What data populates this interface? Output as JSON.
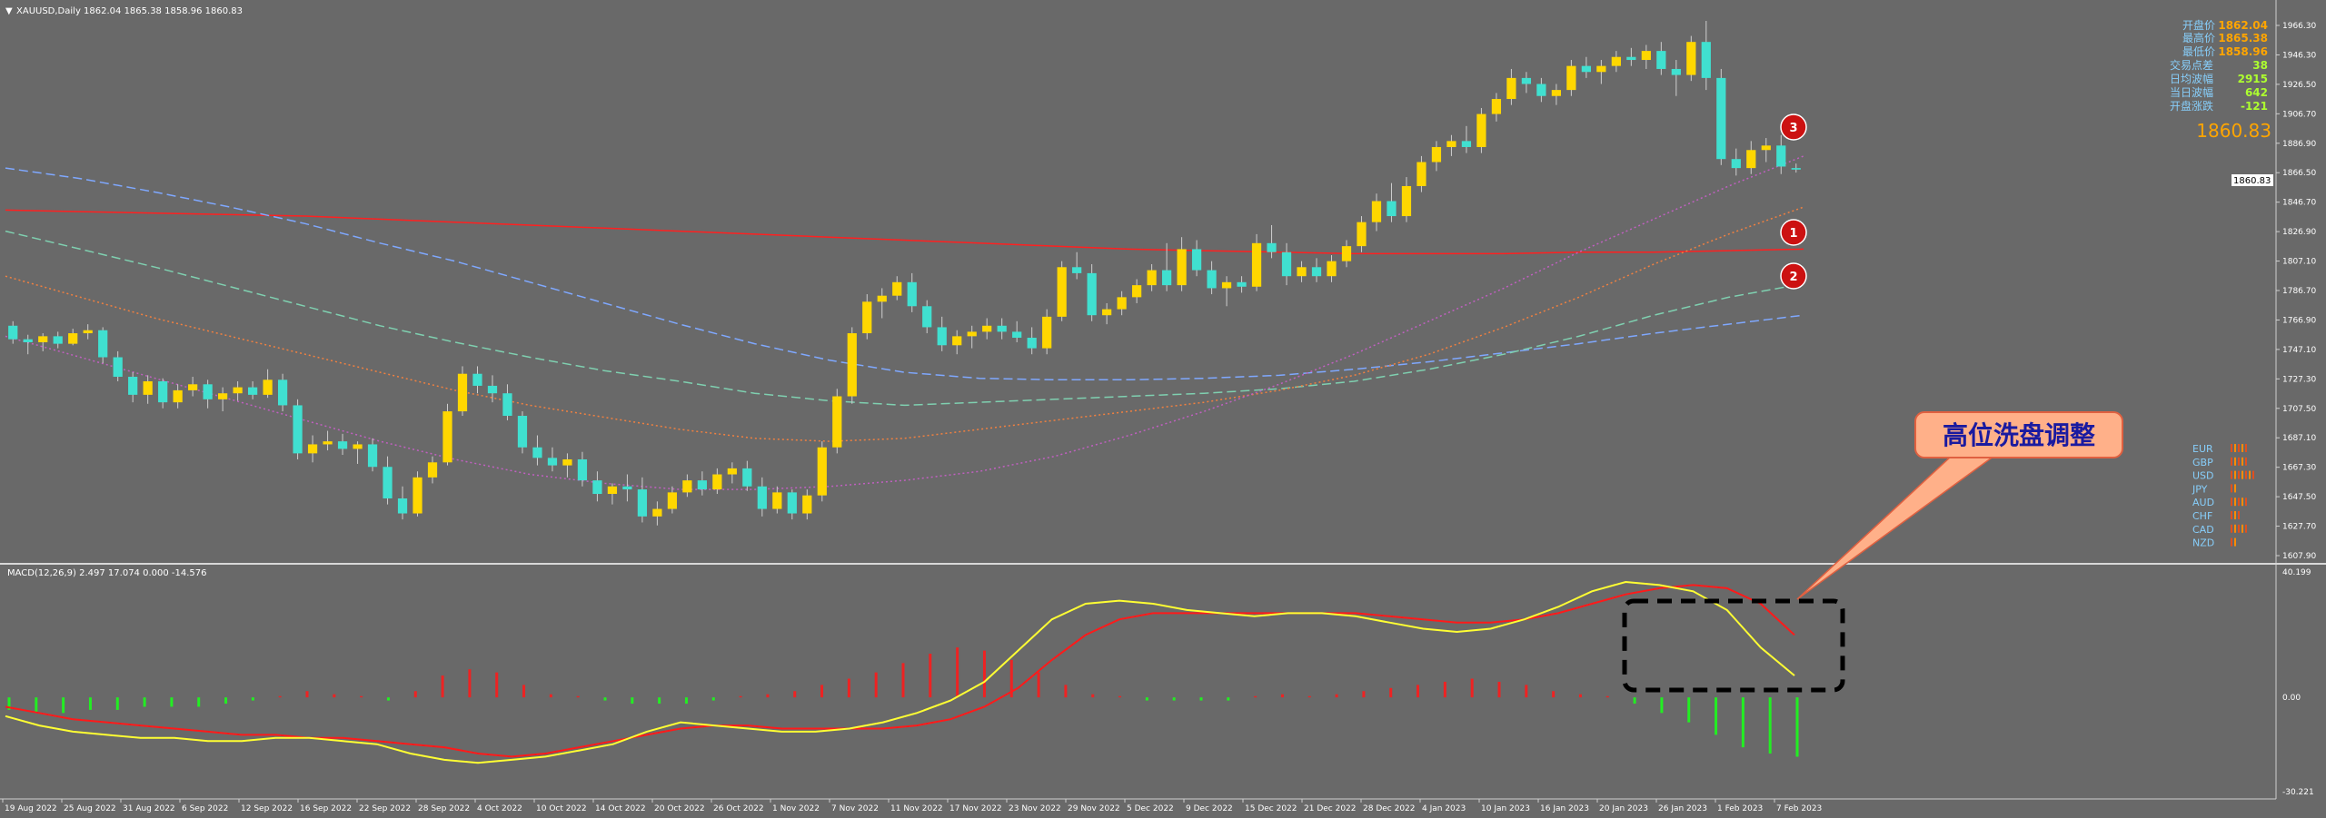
{
  "header": {
    "symbol_line": "XAUUSD,Daily  1862.04 1865.38 1858.96 1860.83",
    "macd_line": "MACD(12,26,9) 2.497 17.074 0.000 -14.576"
  },
  "info_panel": {
    "rows": [
      {
        "label": "开盘价",
        "value": "1862.04"
      },
      {
        "label": "最高价",
        "value": "1865.38"
      },
      {
        "label": "最低价",
        "value": "1858.96"
      },
      {
        "label": "交易点差",
        "value": "38"
      },
      {
        "label": "日均波幅",
        "value": "2915"
      },
      {
        "label": "当日波幅",
        "value": "642"
      },
      {
        "label": "开盘涨跌",
        "value": "-121"
      }
    ],
    "last_price": "1860.83",
    "price_tag": "1860.83"
  },
  "currency_strength": {
    "rows": [
      {
        "label": "EUR",
        "bars": 5
      },
      {
        "label": "GBP",
        "bars": 5
      },
      {
        "label": "USD",
        "bars": 7
      },
      {
        "label": "JPY",
        "bars": 2
      },
      {
        "label": "AUD",
        "bars": 5
      },
      {
        "label": "CHF",
        "bars": 3
      },
      {
        "label": "CAD",
        "bars": 5
      },
      {
        "label": "NZD",
        "bars": 2
      }
    ]
  },
  "annotation": {
    "callout_text": "高位洗盘调整",
    "markers": [
      "3",
      "1",
      "2"
    ]
  },
  "colors": {
    "background": "#696969",
    "bull_candle": "#FFD700",
    "bear_candle": "#40E0D0",
    "macd_signal_red": "#FF1A1A",
    "macd_line_yellow": "#FFFF33",
    "hist_green": "#22EE22",
    "hist_red": "#EE2222",
    "label_orange": "#FFA500",
    "label_green": "#ADFF2F",
    "label_blue": "#87CEFA"
  },
  "chart_data": [
    {
      "type": "candlestick",
      "title": "XAUUSD,Daily",
      "x_tick_labels": [
        "19 Aug 2022",
        "25 Aug 2022",
        "31 Aug 2022",
        "6 Sep 2022",
        "12 Sep 2022",
        "16 Sep 2022",
        "22 Sep 2022",
        "28 Sep 2022",
        "4 Oct 2022",
        "10 Oct 2022",
        "14 Oct 2022",
        "20 Oct 2022",
        "26 Oct 2022",
        "1 Nov 2022",
        "7 Nov 2022",
        "11 Nov 2022",
        "17 Nov 2022",
        "23 Nov 2022",
        "29 Nov 2022",
        "5 Dec 2022",
        "9 Dec 2022",
        "15 Dec 2022",
        "21 Dec 2022",
        "28 Dec 2022",
        "4 Jan 2023",
        "10 Jan 2023",
        "16 Jan 2023",
        "20 Jan 2023",
        "26 Jan 2023",
        "1 Feb 2023",
        "7 Feb 2023"
      ],
      "y_tick_labels": [
        "1966.30",
        "1946.30",
        "1926.50",
        "1906.70",
        "1886.90",
        "1866.50",
        "1846.70",
        "1826.90",
        "1807.10",
        "1786.70",
        "1766.90",
        "1747.10",
        "1727.30",
        "1707.50",
        "1687.10",
        "1667.30",
        "1647.50",
        "1627.70",
        "1607.90"
      ],
      "ylim": [
        1607.9,
        1966.3
      ],
      "last_price": 1860.83,
      "ohlc": [
        [
          1757,
          1760,
          1745,
          1748
        ],
        [
          1748,
          1751,
          1738,
          1746
        ],
        [
          1746,
          1752,
          1740,
          1750
        ],
        [
          1750,
          1753,
          1742,
          1745
        ],
        [
          1745,
          1755,
          1744,
          1752
        ],
        [
          1752,
          1758,
          1748,
          1754
        ],
        [
          1754,
          1756,
          1732,
          1736
        ],
        [
          1736,
          1740,
          1720,
          1723
        ],
        [
          1723,
          1726,
          1706,
          1711
        ],
        [
          1711,
          1724,
          1705,
          1720
        ],
        [
          1720,
          1722,
          1702,
          1706
        ],
        [
          1706,
          1718,
          1702,
          1714
        ],
        [
          1714,
          1723,
          1710,
          1718
        ],
        [
          1718,
          1721,
          1702,
          1708
        ],
        [
          1708,
          1716,
          1700,
          1712
        ],
        [
          1712,
          1720,
          1707,
          1716
        ],
        [
          1716,
          1720,
          1708,
          1711
        ],
        [
          1711,
          1728,
          1709,
          1721
        ],
        [
          1721,
          1725,
          1700,
          1704
        ],
        [
          1704,
          1708,
          1668,
          1672
        ],
        [
          1672,
          1684,
          1666,
          1678
        ],
        [
          1678,
          1687,
          1674,
          1680
        ],
        [
          1680,
          1685,
          1671,
          1675
        ],
        [
          1675,
          1680,
          1665,
          1678
        ],
        [
          1678,
          1682,
          1660,
          1663
        ],
        [
          1663,
          1670,
          1638,
          1642
        ],
        [
          1642,
          1650,
          1628,
          1632
        ],
        [
          1632,
          1660,
          1630,
          1656
        ],
        [
          1656,
          1670,
          1652,
          1666
        ],
        [
          1666,
          1705,
          1664,
          1700
        ],
        [
          1700,
          1730,
          1697,
          1725
        ],
        [
          1725,
          1730,
          1712,
          1717
        ],
        [
          1717,
          1724,
          1706,
          1712
        ],
        [
          1712,
          1718,
          1694,
          1697
        ],
        [
          1697,
          1700,
          1672,
          1676
        ],
        [
          1676,
          1684,
          1664,
          1669
        ],
        [
          1669,
          1676,
          1660,
          1664
        ],
        [
          1664,
          1672,
          1656,
          1668
        ],
        [
          1668,
          1673,
          1650,
          1654
        ],
        [
          1654,
          1660,
          1640,
          1645
        ],
        [
          1645,
          1652,
          1638,
          1650
        ],
        [
          1650,
          1658,
          1640,
          1648
        ],
        [
          1648,
          1656,
          1626,
          1630
        ],
        [
          1630,
          1640,
          1624,
          1635
        ],
        [
          1635,
          1650,
          1632,
          1646
        ],
        [
          1646,
          1658,
          1643,
          1654
        ],
        [
          1654,
          1660,
          1644,
          1648
        ],
        [
          1648,
          1662,
          1645,
          1658
        ],
        [
          1658,
          1666,
          1652,
          1662
        ],
        [
          1662,
          1667,
          1647,
          1650
        ],
        [
          1650,
          1656,
          1630,
          1635
        ],
        [
          1635,
          1650,
          1632,
          1646
        ],
        [
          1646,
          1648,
          1628,
          1632
        ],
        [
          1632,
          1648,
          1628,
          1644
        ],
        [
          1644,
          1680,
          1640,
          1676
        ],
        [
          1676,
          1715,
          1672,
          1710
        ],
        [
          1710,
          1756,
          1705,
          1752
        ],
        [
          1752,
          1778,
          1748,
          1773
        ],
        [
          1773,
          1782,
          1762,
          1777
        ],
        [
          1777,
          1790,
          1774,
          1786
        ],
        [
          1786,
          1792,
          1766,
          1770
        ],
        [
          1770,
          1774,
          1752,
          1756
        ],
        [
          1756,
          1763,
          1740,
          1744
        ],
        [
          1744,
          1754,
          1738,
          1750
        ],
        [
          1750,
          1757,
          1742,
          1753
        ],
        [
          1753,
          1762,
          1748,
          1757
        ],
        [
          1757,
          1762,
          1748,
          1753
        ],
        [
          1753,
          1760,
          1746,
          1749
        ],
        [
          1749,
          1756,
          1738,
          1742
        ],
        [
          1742,
          1768,
          1738,
          1763
        ],
        [
          1763,
          1800,
          1760,
          1796
        ],
        [
          1796,
          1806,
          1788,
          1792
        ],
        [
          1792,
          1798,
          1760,
          1764
        ],
        [
          1764,
          1772,
          1758,
          1768
        ],
        [
          1768,
          1780,
          1764,
          1776
        ],
        [
          1776,
          1788,
          1772,
          1784
        ],
        [
          1784,
          1798,
          1780,
          1794
        ],
        [
          1794,
          1812,
          1780,
          1784
        ],
        [
          1784,
          1816,
          1780,
          1808
        ],
        [
          1808,
          1814,
          1790,
          1794
        ],
        [
          1794,
          1800,
          1778,
          1782
        ],
        [
          1782,
          1790,
          1770,
          1786
        ],
        [
          1786,
          1790,
          1779,
          1783
        ],
        [
          1783,
          1818,
          1780,
          1812
        ],
        [
          1812,
          1824,
          1802,
          1806
        ],
        [
          1806,
          1812,
          1784,
          1790
        ],
        [
          1790,
          1800,
          1786,
          1796
        ],
        [
          1796,
          1802,
          1786,
          1790
        ],
        [
          1790,
          1804,
          1786,
          1800
        ],
        [
          1800,
          1814,
          1796,
          1810
        ],
        [
          1810,
          1830,
          1806,
          1826
        ],
        [
          1826,
          1845,
          1820,
          1840
        ],
        [
          1840,
          1852,
          1826,
          1830
        ],
        [
          1830,
          1856,
          1826,
          1850
        ],
        [
          1850,
          1870,
          1846,
          1866
        ],
        [
          1866,
          1880,
          1860,
          1876
        ],
        [
          1876,
          1884,
          1870,
          1880
        ],
        [
          1880,
          1890,
          1872,
          1876
        ],
        [
          1876,
          1902,
          1872,
          1898
        ],
        [
          1898,
          1912,
          1893,
          1908
        ],
        [
          1908,
          1928,
          1904,
          1922
        ],
        [
          1922,
          1926,
          1912,
          1918
        ],
        [
          1918,
          1922,
          1906,
          1910
        ],
        [
          1910,
          1918,
          1904,
          1914
        ],
        [
          1914,
          1934,
          1910,
          1930
        ],
        [
          1930,
          1936,
          1922,
          1926
        ],
        [
          1926,
          1934,
          1918,
          1930
        ],
        [
          1930,
          1940,
          1926,
          1936
        ],
        [
          1936,
          1942,
          1930,
          1934
        ],
        [
          1934,
          1944,
          1928,
          1940
        ],
        [
          1940,
          1946,
          1924,
          1928
        ],
        [
          1928,
          1934,
          1910,
          1924
        ],
        [
          1924,
          1950,
          1920,
          1946
        ],
        [
          1946,
          1960,
          1914,
          1922
        ],
        [
          1922,
          1928,
          1864,
          1868
        ],
        [
          1868,
          1875,
          1857,
          1862
        ],
        [
          1862,
          1880,
          1858,
          1874
        ],
        [
          1874,
          1882,
          1866,
          1877
        ],
        [
          1877,
          1884,
          1858,
          1863
        ],
        [
          1862,
          1865,
          1859,
          1861
        ]
      ],
      "moving_averages": [
        {
          "color": "#FF2020",
          "style": "solid",
          "values": [
            1834,
            1833,
            1832,
            1831,
            1830,
            1828,
            1826,
            1824,
            1822,
            1820,
            1818,
            1816,
            1814,
            1812,
            1810,
            1808,
            1807,
            1806,
            1805,
            1805,
            1805,
            1806,
            1806,
            1807,
            1808
          ]
        },
        {
          "color": "#7FA8FF",
          "style": "dashed",
          "values": [
            1862,
            1855,
            1846,
            1836,
            1825,
            1812,
            1800,
            1786,
            1772,
            1758,
            1745,
            1734,
            1726,
            1722,
            1721,
            1721,
            1722,
            1724,
            1728,
            1733,
            1739,
            1745,
            1752,
            1758,
            1764
          ]
        },
        {
          "color": "#7FD0B0",
          "style": "dashed",
          "values": [
            1820,
            1808,
            1796,
            1783,
            1770,
            1757,
            1746,
            1736,
            1727,
            1720,
            1712,
            1707,
            1704,
            1706,
            1708,
            1710,
            1712,
            1715,
            1720,
            1728,
            1738,
            1750,
            1764,
            1776,
            1785
          ]
        },
        {
          "color": "#F08040",
          "style": "dotted",
          "values": [
            1790,
            1776,
            1762,
            1750,
            1738,
            1726,
            1714,
            1704,
            1696,
            1688,
            1682,
            1680,
            1682,
            1688,
            1694,
            1700,
            1706,
            1714,
            1724,
            1738,
            1756,
            1776,
            1798,
            1818,
            1836
          ]
        },
        {
          "color": "#C060C0",
          "style": "dotted",
          "values": [
            1750,
            1736,
            1722,
            1708,
            1694,
            1680,
            1668,
            1658,
            1652,
            1648,
            1648,
            1650,
            1654,
            1660,
            1670,
            1684,
            1700,
            1718,
            1738,
            1760,
            1782,
            1806,
            1828,
            1850,
            1870
          ]
        }
      ]
    },
    {
      "type": "bar_line",
      "title": "MACD(12,26,9)",
      "y_tick_labels": [
        "40.199",
        "0.00",
        "-30.221"
      ],
      "ylim": [
        -30.221,
        40.199
      ],
      "macd_yellow": [
        -6,
        -9,
        -11,
        -12,
        -13,
        -13,
        -14,
        -14,
        -13,
        -13,
        -14,
        -15,
        -18,
        -20,
        -21,
        -20,
        -19,
        -17,
        -15,
        -11,
        -8,
        -9,
        -10,
        -11,
        -11,
        -10,
        -8,
        -5,
        -1,
        5,
        15,
        25,
        30,
        31,
        30,
        28,
        27,
        26,
        27,
        27,
        26,
        24,
        22,
        21,
        22,
        25,
        29,
        34,
        37,
        36,
        34,
        28,
        16,
        7
      ],
      "macd_red": [
        -3,
        -5,
        -7,
        -8,
        -9,
        -10,
        -11,
        -12,
        -12,
        -13,
        -13,
        -14,
        -15,
        -16,
        -18,
        -19,
        -18,
        -16,
        -14,
        -12,
        -10,
        -9,
        -9,
        -10,
        -10,
        -10,
        -10,
        -9,
        -7,
        -3,
        3,
        12,
        20,
        25,
        27,
        27,
        27,
        27,
        27,
        27,
        27,
        26,
        25,
        24,
        24,
        25,
        27,
        30,
        33,
        35,
        36,
        35,
        30,
        20
      ],
      "histogram": [
        -4,
        -5,
        -5,
        -4,
        -4,
        -3,
        -3,
        -3,
        -2,
        -1,
        0,
        2,
        1,
        0,
        -1,
        2,
        7,
        9,
        8,
        4,
        1,
        0,
        -1,
        -2,
        -2,
        -2,
        -1,
        0,
        1,
        2,
        4,
        6,
        8,
        11,
        14,
        16,
        15,
        12,
        8,
        4,
        1,
        0,
        -1,
        -1,
        -1,
        -1,
        0,
        1,
        0,
        1,
        2,
        3,
        4,
        5,
        6,
        5,
        4,
        2,
        1,
        0,
        -2,
        -5,
        -8,
        -12,
        -16,
        -18,
        -19
      ]
    }
  ]
}
